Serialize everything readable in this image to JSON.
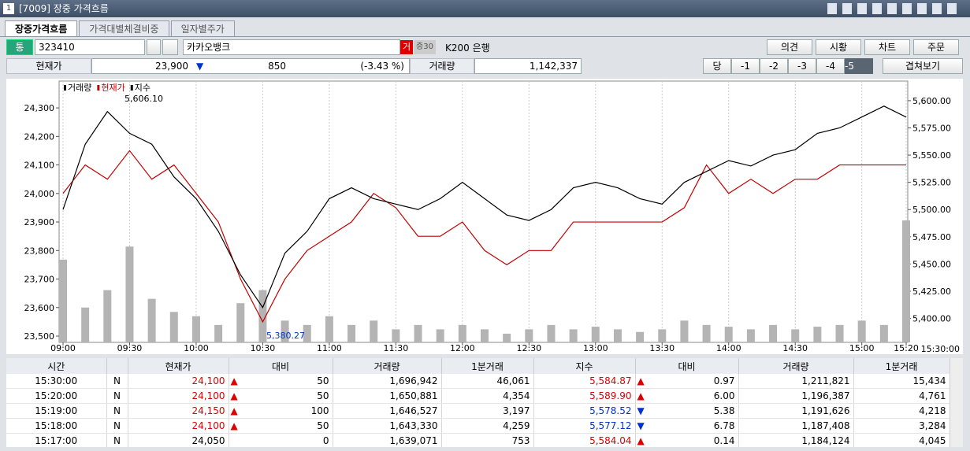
{
  "window": {
    "number": "1",
    "title": "[7009] 장중 가격흐름"
  },
  "tabs": [
    "장중가격흐름",
    "가격대별체결비중",
    "일자별주가"
  ],
  "toolbar": {
    "mode": "통",
    "code": "323410",
    "name": "카카오뱅크",
    "badge1": "거",
    "badge2": "증30",
    "sector": "K200 은행",
    "buttons": [
      "의견",
      "시황",
      "차트",
      "주문"
    ]
  },
  "quote": {
    "price_label": "현재가",
    "price": "23,900",
    "direction": "▼",
    "change": "850",
    "rate": "(-3.43 %)",
    "volume_label": "거래량",
    "volume": "1,142,337",
    "day_buttons": [
      "당",
      "-1",
      "-2",
      "-3",
      "-4",
      "-5"
    ],
    "overlay_button": "겹쳐보기"
  },
  "chart_data": {
    "type": "line",
    "legend": [
      "거래량",
      "현재가",
      "지수"
    ],
    "annotations": [
      "5,606.10",
      "5,380.27"
    ],
    "end_label": "15:30:00",
    "categories": [
      "09:00",
      null,
      null,
      "09:30",
      null,
      null,
      "10:00",
      null,
      null,
      "10:30",
      null,
      null,
      "11:00",
      null,
      null,
      "11:30",
      null,
      null,
      "12:00",
      null,
      null,
      "12:30",
      null,
      null,
      "13:00",
      null,
      null,
      "13:30",
      null,
      null,
      "14:00",
      null,
      null,
      "14:30",
      null,
      null,
      "15:00",
      null,
      "15:20"
    ],
    "series": [
      {
        "name": "현재가",
        "color": "#c00000",
        "values": [
          24000,
          24100,
          24050,
          24150,
          24050,
          24100,
          24000,
          23900,
          23700,
          23550,
          23700,
          23800,
          23850,
          23900,
          24000,
          23950,
          23850,
          23850,
          23900,
          23800,
          23750,
          23800,
          23800,
          23900,
          23900,
          23900,
          23900,
          23900,
          23950,
          24100,
          24000,
          24050,
          24000,
          24050,
          24050,
          24100,
          24100,
          24100,
          24100
        ]
      },
      {
        "name": "지수",
        "color": "#000000",
        "axis": "y2",
        "values": [
          5500,
          5560,
          5590,
          5570,
          5560,
          5530,
          5510,
          5480,
          5440,
          5410,
          5460,
          5480,
          5510,
          5520,
          5510,
          5505,
          5500,
          5510,
          5525,
          5510,
          5495,
          5490,
          5500,
          5520,
          5525,
          5520,
          5510,
          5505,
          5525,
          5535,
          5545,
          5540,
          5550,
          5555,
          5570,
          5575,
          5585,
          5595,
          5584.87
        ]
      },
      {
        "name": "거래량",
        "color": "#b4b4b4",
        "type": "bar",
        "axis": "volume",
        "values": [
          95000,
          40000,
          60000,
          110000,
          50000,
          35000,
          30000,
          20000,
          45000,
          60000,
          25000,
          20000,
          30000,
          20000,
          25000,
          15000,
          20000,
          15000,
          20000,
          15000,
          10000,
          15000,
          20000,
          15000,
          18000,
          15000,
          12000,
          15000,
          25000,
          20000,
          18000,
          15000,
          20000,
          15000,
          18000,
          20000,
          25000,
          20000,
          140000
        ]
      }
    ],
    "ylim": [
      23478,
      24394
    ],
    "yticks": [
      {
        "value": 23500,
        "label": "23,500"
      },
      {
        "value": 23600,
        "label": "23,600"
      },
      {
        "value": 23700,
        "label": "23,700"
      },
      {
        "value": 23800,
        "label": "23,800"
      },
      {
        "value": 23900,
        "label": "23,900"
      },
      {
        "value": 24000,
        "label": "24,000"
      },
      {
        "value": 24100,
        "label": "24,100"
      },
      {
        "value": 24200,
        "label": "24,200"
      },
      {
        "value": 24300,
        "label": "24,300"
      }
    ],
    "y2lim": [
      5378,
      5618
    ],
    "y2ticks": [
      {
        "value": 5400,
        "label": "5,400.00"
      },
      {
        "value": 5425,
        "label": "5,425.00"
      },
      {
        "value": 5450,
        "label": "5,450.00"
      },
      {
        "value": 5475,
        "label": "5,475.00"
      },
      {
        "value": 5500,
        "label": "5,500.00"
      },
      {
        "value": 5525,
        "label": "5,525.00"
      },
      {
        "value": 5550,
        "label": "5,550.00"
      },
      {
        "value": 5575,
        "label": "5,575.00"
      },
      {
        "value": 5600,
        "label": "5,600.00"
      }
    ],
    "volume_lim": [
      0,
      300000
    ],
    "grid": true
  },
  "table": {
    "header": [
      "시간",
      "현재가",
      "대비",
      "거래량",
      "1분거래",
      "지수",
      "대비",
      "거래량",
      "1분거래"
    ],
    "rows": [
      [
        "15:30:00",
        "N",
        "24,100",
        "▲",
        "50",
        "1,696,942",
        "46,061",
        "5,584.87",
        "▲",
        "0.97",
        "1,211,821",
        "15,434"
      ],
      [
        "15:20:00",
        "N",
        "24,100",
        "▲",
        "50",
        "1,650,881",
        "4,354",
        "5,589.90",
        "▲",
        "6.00",
        "1,196,387",
        "4,761"
      ],
      [
        "15:19:00",
        "N",
        "24,150",
        "▲",
        "100",
        "1,646,527",
        "3,197",
        "5,578.52",
        "▼",
        "5.38",
        "1,191,626",
        "4,218"
      ],
      [
        "15:18:00",
        "N",
        "24,100",
        "▲",
        "50",
        "1,643,330",
        "4,259",
        "5,577.12",
        "▼",
        "6.78",
        "1,187,408",
        "3,284"
      ],
      [
        "15:17:00",
        "N",
        "24,050",
        "",
        "0",
        "1,639,071",
        "753",
        "5,584.04",
        "▲",
        "0.14",
        "1,184,124",
        "4,045"
      ]
    ]
  }
}
